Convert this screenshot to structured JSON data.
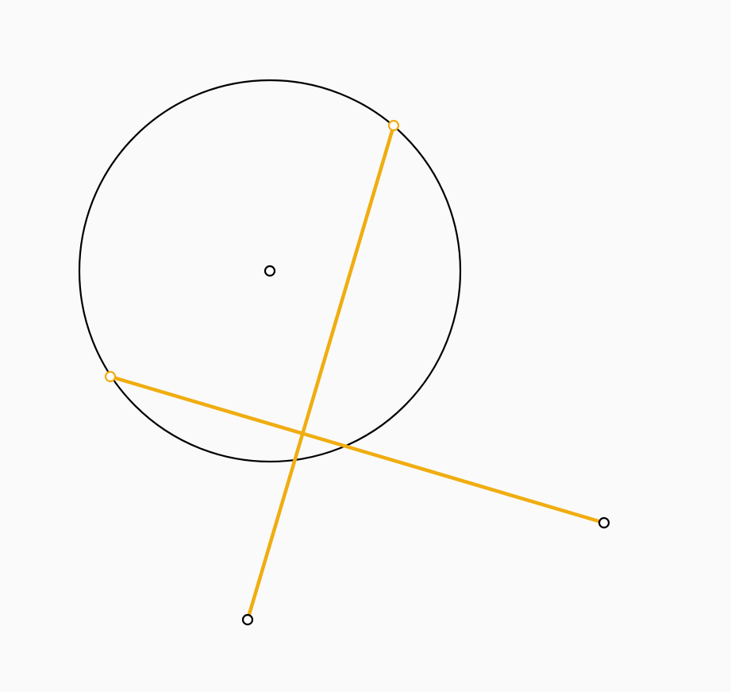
{
  "colors": {
    "background": "#fafafa",
    "circle_stroke": "#000000",
    "segment_stroke": "#f0ad10",
    "point_fill": "#ffffff",
    "endpoint_stroke_on_circle": "#f0ad10",
    "endpoint_stroke_free": "#000000"
  }
}
